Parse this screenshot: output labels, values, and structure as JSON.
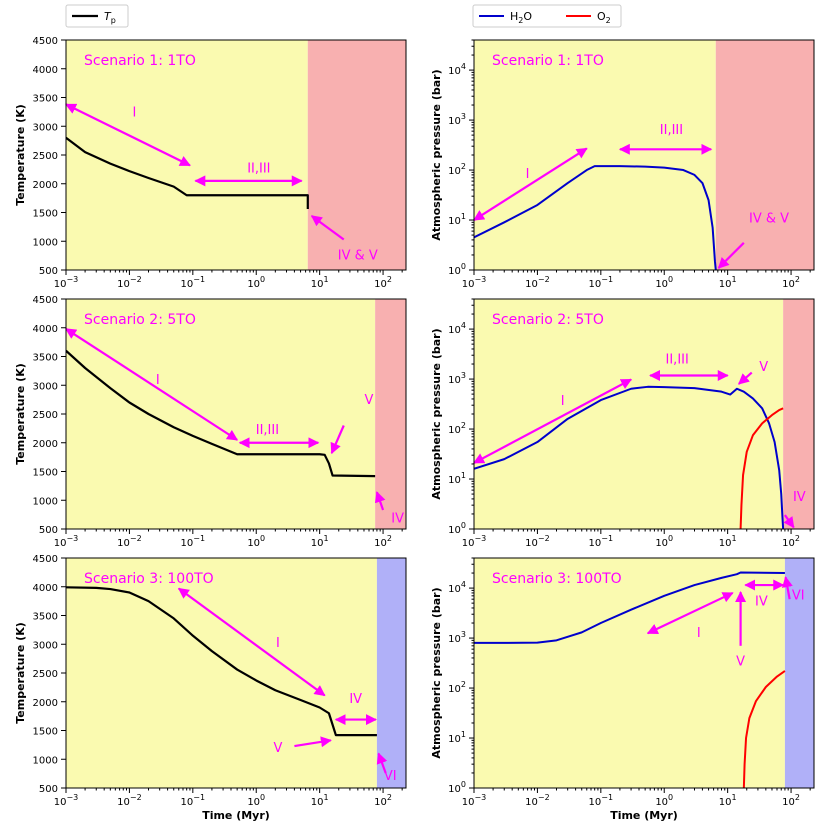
{
  "legends": {
    "left": [
      {
        "label": "T",
        "sub": "p",
        "color": "#000000"
      }
    ],
    "right": [
      {
        "label": "H",
        "sub": "2",
        "tail": "O",
        "color": "#0000cc"
      },
      {
        "label": "O",
        "sub": "2",
        "tail": "",
        "color": "#ff0000"
      }
    ]
  },
  "colors": {
    "yellow": "#fafab0",
    "red": "#f8b0b0",
    "blue": "#b0b0f8",
    "magenta": "#ff00ff",
    "temp_line": "#000000",
    "h2o": "#0000cc",
    "o2": "#ff0000"
  },
  "chart_data": [
    {
      "type": "line",
      "id": "temp-1",
      "title": "Scenario 1: 1TO",
      "xlabel": "Time (Myr)",
      "ylabel": "Temperature (K)",
      "xscale": "log",
      "xlim": [
        0.001,
        230
      ],
      "yscale": "linear",
      "ylim": [
        500,
        4500
      ],
      "yticks": [
        500,
        1000,
        1500,
        2000,
        2500,
        3000,
        3500,
        4000,
        4500
      ],
      "xtick_exps": [
        -3,
        -2,
        -1,
        0,
        1,
        2
      ],
      "bands": [
        {
          "from": 0.001,
          "to": 6.5,
          "color": "yellow"
        },
        {
          "from": 6.5,
          "to": 230,
          "color": "red"
        }
      ],
      "series": [
        {
          "name": "T_p",
          "color": "temp_line",
          "points": [
            [
              0.001,
              2800
            ],
            [
              0.002,
              2550
            ],
            [
              0.005,
              2350
            ],
            [
              0.01,
              2220
            ],
            [
              0.02,
              2100
            ],
            [
              0.05,
              1950
            ],
            [
              0.08,
              1800
            ],
            [
              1,
              1800
            ],
            [
              6.5,
              1800
            ],
            [
              6.5,
              1560
            ]
          ]
        }
      ],
      "arrows": [
        {
          "from": [
            0.001,
            3380
          ],
          "to": [
            0.09,
            2320
          ],
          "head": "both"
        },
        {
          "from": [
            0.11,
            2050
          ],
          "to": [
            5.2,
            2050
          ],
          "head": "both"
        },
        {
          "from": [
            24,
            1030
          ],
          "to": [
            7.5,
            1440
          ],
          "head": "end"
        }
      ],
      "labels": [
        {
          "text": "I",
          "at": [
            0.012,
            3170
          ]
        },
        {
          "text": "II,III",
          "at": [
            1.1,
            2200
          ]
        },
        {
          "text": "IV & V",
          "at": [
            40,
            680
          ]
        }
      ]
    },
    {
      "type": "line",
      "id": "pressure-1",
      "title": "Scenario 1: 1TO",
      "xlabel": "Time (Myr)",
      "ylabel": "Atmospheric pressure (bar)",
      "xscale": "log",
      "xlim": [
        0.001,
        230
      ],
      "yscale": "log",
      "ylim": [
        1,
        40000
      ],
      "ytick_exps": [
        0,
        1,
        2,
        3,
        4
      ],
      "xtick_exps": [
        -3,
        -2,
        -1,
        0,
        1,
        2
      ],
      "bands": [
        {
          "from": 0.001,
          "to": 6.5,
          "color": "yellow"
        },
        {
          "from": 6.5,
          "to": 230,
          "color": "red"
        }
      ],
      "series": [
        {
          "name": "H2O",
          "color": "h2o",
          "points": [
            [
              0.001,
              4.5
            ],
            [
              0.003,
              9
            ],
            [
              0.01,
              20
            ],
            [
              0.03,
              55
            ],
            [
              0.06,
              100
            ],
            [
              0.08,
              120
            ],
            [
              0.2,
              120
            ],
            [
              0.5,
              117
            ],
            [
              1,
              112
            ],
            [
              2,
              100
            ],
            [
              3,
              80
            ],
            [
              4,
              55
            ],
            [
              5,
              25
            ],
            [
              5.8,
              7
            ],
            [
              6.3,
              1.5
            ],
            [
              6.5,
              1
            ]
          ]
        }
      ],
      "arrows": [
        {
          "from": [
            0.001,
            10
          ],
          "to": [
            0.06,
            270
          ],
          "head": "both"
        },
        {
          "from": [
            0.2,
            260
          ],
          "to": [
            5.5,
            260
          ],
          "head": "both"
        },
        {
          "from": [
            7.2,
            1.1
          ],
          "to": [
            18,
            3.5
          ],
          "head": "start"
        }
      ],
      "labels": [
        {
          "text": "I",
          "at": [
            0.007,
            70
          ]
        },
        {
          "text": "II,III",
          "at": [
            1.3,
            530
          ]
        },
        {
          "text": "IV & V",
          "at": [
            45,
            9
          ]
        }
      ]
    },
    {
      "type": "line",
      "id": "temp-2",
      "title": "Scenario 2: 5TO",
      "xlabel": "Time (Myr)",
      "ylabel": "Temperature (K)",
      "xscale": "log",
      "xlim": [
        0.001,
        230
      ],
      "yscale": "linear",
      "ylim": [
        500,
        4500
      ],
      "yticks": [
        500,
        1000,
        1500,
        2000,
        2500,
        3000,
        3500,
        4000,
        4500
      ],
      "xtick_exps": [
        -3,
        -2,
        -1,
        0,
        1,
        2
      ],
      "bands": [
        {
          "from": 0.001,
          "to": 75,
          "color": "yellow"
        },
        {
          "from": 75,
          "to": 230,
          "color": "red"
        }
      ],
      "series": [
        {
          "name": "T_p",
          "color": "temp_line",
          "points": [
            [
              0.001,
              3600
            ],
            [
              0.002,
              3300
            ],
            [
              0.005,
              2950
            ],
            [
              0.01,
              2700
            ],
            [
              0.02,
              2500
            ],
            [
              0.05,
              2270
            ],
            [
              0.1,
              2120
            ],
            [
              0.2,
              1980
            ],
            [
              0.5,
              1800
            ],
            [
              1,
              1800
            ],
            [
              5,
              1800
            ],
            [
              10,
              1800
            ],
            [
              12,
              1790
            ],
            [
              14,
              1640
            ],
            [
              16,
              1430
            ],
            [
              75,
              1420
            ]
          ]
        }
      ],
      "arrows": [
        {
          "from": [
            0.001,
            3980
          ],
          "to": [
            0.5,
            2050
          ],
          "head": "both"
        },
        {
          "from": [
            0.55,
            2000
          ],
          "to": [
            9.5,
            2000
          ],
          "head": "both"
        },
        {
          "from": [
            24,
            2300
          ],
          "to": [
            15.5,
            1820
          ],
          "head": "end"
        },
        {
          "from": [
            100,
            830
          ],
          "to": [
            80,
            1140
          ],
          "head": "end"
        }
      ],
      "labels": [
        {
          "text": "I",
          "at": [
            0.028,
            3020
          ]
        },
        {
          "text": "II,III",
          "at": [
            1.5,
            2150
          ]
        },
        {
          "text": "V",
          "at": [
            60,
            2670
          ]
        },
        {
          "text": "IV",
          "at": [
            170,
            610
          ]
        }
      ]
    },
    {
      "type": "line",
      "id": "pressure-2",
      "title": "Scenario 2: 5TO",
      "xlabel": "Time (Myr)",
      "ylabel": "Atmospheric pressure (bar)",
      "xscale": "log",
      "xlim": [
        0.001,
        230
      ],
      "yscale": "log",
      "ylim": [
        1,
        40000
      ],
      "ytick_exps": [
        0,
        1,
        2,
        3,
        4
      ],
      "xtick_exps": [
        -3,
        -2,
        -1,
        0,
        1,
        2
      ],
      "bands": [
        {
          "from": 0.001,
          "to": 75,
          "color": "yellow"
        },
        {
          "from": 75,
          "to": 230,
          "color": "red"
        }
      ],
      "series": [
        {
          "name": "H2O",
          "color": "h2o",
          "points": [
            [
              0.001,
              16
            ],
            [
              0.003,
              25
            ],
            [
              0.01,
              55
            ],
            [
              0.03,
              160
            ],
            [
              0.1,
              380
            ],
            [
              0.3,
              640
            ],
            [
              0.55,
              700
            ],
            [
              1,
              690
            ],
            [
              3,
              660
            ],
            [
              8,
              560
            ],
            [
              11,
              490
            ],
            [
              14,
              640
            ],
            [
              18,
              560
            ],
            [
              25,
              410
            ],
            [
              35,
              260
            ],
            [
              45,
              130
            ],
            [
              55,
              55
            ],
            [
              65,
              15
            ],
            [
              70,
              5
            ],
            [
              73,
              1.8
            ],
            [
              75,
              1
            ]
          ]
        },
        {
          "name": "O2",
          "color": "o2",
          "points": [
            [
              16,
              1
            ],
            [
              16.5,
              3
            ],
            [
              17.5,
              12
            ],
            [
              20,
              35
            ],
            [
              25,
              75
            ],
            [
              35,
              130
            ],
            [
              50,
              190
            ],
            [
              65,
              240
            ],
            [
              75,
              260
            ]
          ]
        }
      ],
      "arrows": [
        {
          "from": [
            0.001,
            21
          ],
          "to": [
            0.3,
            980
          ],
          "head": "both"
        },
        {
          "from": [
            0.6,
            1180
          ],
          "to": [
            10,
            1180
          ],
          "head": "both"
        },
        {
          "from": [
            24,
            1350
          ],
          "to": [
            15,
            800
          ],
          "head": "end"
        },
        {
          "from": [
            110,
            1.08
          ],
          "to": [
            80,
            1.9
          ],
          "head": "start"
        }
      ],
      "labels": [
        {
          "text": "I",
          "at": [
            0.025,
            300
          ]
        },
        {
          "text": "II,III",
          "at": [
            1.6,
            2050
          ]
        },
        {
          "text": "V",
          "at": [
            37,
            1450
          ]
        },
        {
          "text": "IV",
          "at": [
            135,
            3.6
          ]
        }
      ]
    },
    {
      "type": "line",
      "id": "temp-3",
      "title": "Scenario 3: 100TO",
      "xlabel": "Time (Myr)",
      "ylabel": "Temperature (K)",
      "xscale": "log",
      "xlim": [
        0.001,
        230
      ],
      "yscale": "linear",
      "ylim": [
        500,
        4500
      ],
      "yticks": [
        500,
        1000,
        1500,
        2000,
        2500,
        3000,
        3500,
        4000,
        4500
      ],
      "xtick_exps": [
        -3,
        -2,
        -1,
        0,
        1,
        2
      ],
      "bands": [
        {
          "from": 0.001,
          "to": 80,
          "color": "yellow"
        },
        {
          "from": 80,
          "to": 230,
          "color": "blue"
        }
      ],
      "series": [
        {
          "name": "T_p",
          "color": "temp_line",
          "points": [
            [
              0.001,
              3990
            ],
            [
              0.003,
              3980
            ],
            [
              0.005,
              3960
            ],
            [
              0.01,
              3900
            ],
            [
              0.02,
              3750
            ],
            [
              0.05,
              3450
            ],
            [
              0.1,
              3150
            ],
            [
              0.2,
              2880
            ],
            [
              0.5,
              2560
            ],
            [
              1,
              2370
            ],
            [
              2,
              2200
            ],
            [
              5,
              2030
            ],
            [
              10,
              1900
            ],
            [
              14,
              1800
            ],
            [
              16,
              1600
            ],
            [
              18,
              1420
            ],
            [
              80,
              1420
            ]
          ]
        }
      ],
      "arrows": [
        {
          "from": [
            0.06,
            3970
          ],
          "to": [
            12,
            2110
          ],
          "head": "both"
        },
        {
          "from": [
            18,
            1690
          ],
          "to": [
            77,
            1690
          ],
          "head": "both"
        },
        {
          "from": [
            4,
            1230
          ],
          "to": [
            15,
            1330
          ],
          "head": "end"
        },
        {
          "from": [
            110,
            760
          ],
          "to": [
            85,
            1100
          ],
          "head": "end"
        }
      ],
      "labels": [
        {
          "text": "I",
          "at": [
            2.2,
            2950
          ]
        },
        {
          "text": "IV",
          "at": [
            37,
            1980
          ]
        },
        {
          "text": "V",
          "at": [
            2.2,
            1130
          ]
        },
        {
          "text": "VI",
          "at": [
            130,
            640
          ]
        }
      ]
    },
    {
      "type": "line",
      "id": "pressure-3",
      "title": "Scenario 3: 100TO",
      "xlabel": "Time (Myr)",
      "ylabel": "Atmospheric pressure (bar)",
      "xscale": "log",
      "xlim": [
        0.001,
        230
      ],
      "yscale": "log",
      "ylim": [
        1,
        40000
      ],
      "ytick_exps": [
        0,
        1,
        2,
        3,
        4
      ],
      "xtick_exps": [
        -3,
        -2,
        -1,
        0,
        1,
        2
      ],
      "bands": [
        {
          "from": 0.001,
          "to": 80,
          "color": "yellow"
        },
        {
          "from": 80,
          "to": 230,
          "color": "blue"
        }
      ],
      "series": [
        {
          "name": "H2O",
          "color": "h2o",
          "points": [
            [
              0.001,
              800
            ],
            [
              0.003,
              800
            ],
            [
              0.01,
              810
            ],
            [
              0.02,
              900
            ],
            [
              0.05,
              1300
            ],
            [
              0.1,
              2000
            ],
            [
              0.3,
              3700
            ],
            [
              1,
              7000
            ],
            [
              3,
              11500
            ],
            [
              8,
              16000
            ],
            [
              14,
              19000
            ],
            [
              16,
              20500
            ],
            [
              80,
              20000
            ]
          ]
        },
        {
          "name": "O2",
          "color": "o2",
          "points": [
            [
              18,
              1
            ],
            [
              18.5,
              3
            ],
            [
              19.5,
              10
            ],
            [
              22,
              25
            ],
            [
              28,
              55
            ],
            [
              40,
              105
            ],
            [
              60,
              170
            ],
            [
              80,
              220
            ]
          ]
        }
      ],
      "arrows": [
        {
          "from": [
            0.55,
            1250
          ],
          "to": [
            12,
            8000
          ],
          "head": "both"
        },
        {
          "from": [
            16,
            700
          ],
          "to": [
            16,
            8300
          ],
          "head": "end"
        },
        {
          "from": [
            19,
            11500
          ],
          "to": [
            75,
            11500
          ],
          "head": "both"
        },
        {
          "from": [
            95,
            6000
          ],
          "to": [
            82,
            16500
          ],
          "head": "end"
        }
      ],
      "labels": [
        {
          "text": "I",
          "at": [
            3.5,
            1050
          ]
        },
        {
          "text": "IV",
          "at": [
            34,
            4500
          ]
        },
        {
          "text": "V",
          "at": [
            16,
            280
          ]
        },
        {
          "text": "VI",
          "at": [
            130,
            5900
          ]
        }
      ]
    }
  ]
}
